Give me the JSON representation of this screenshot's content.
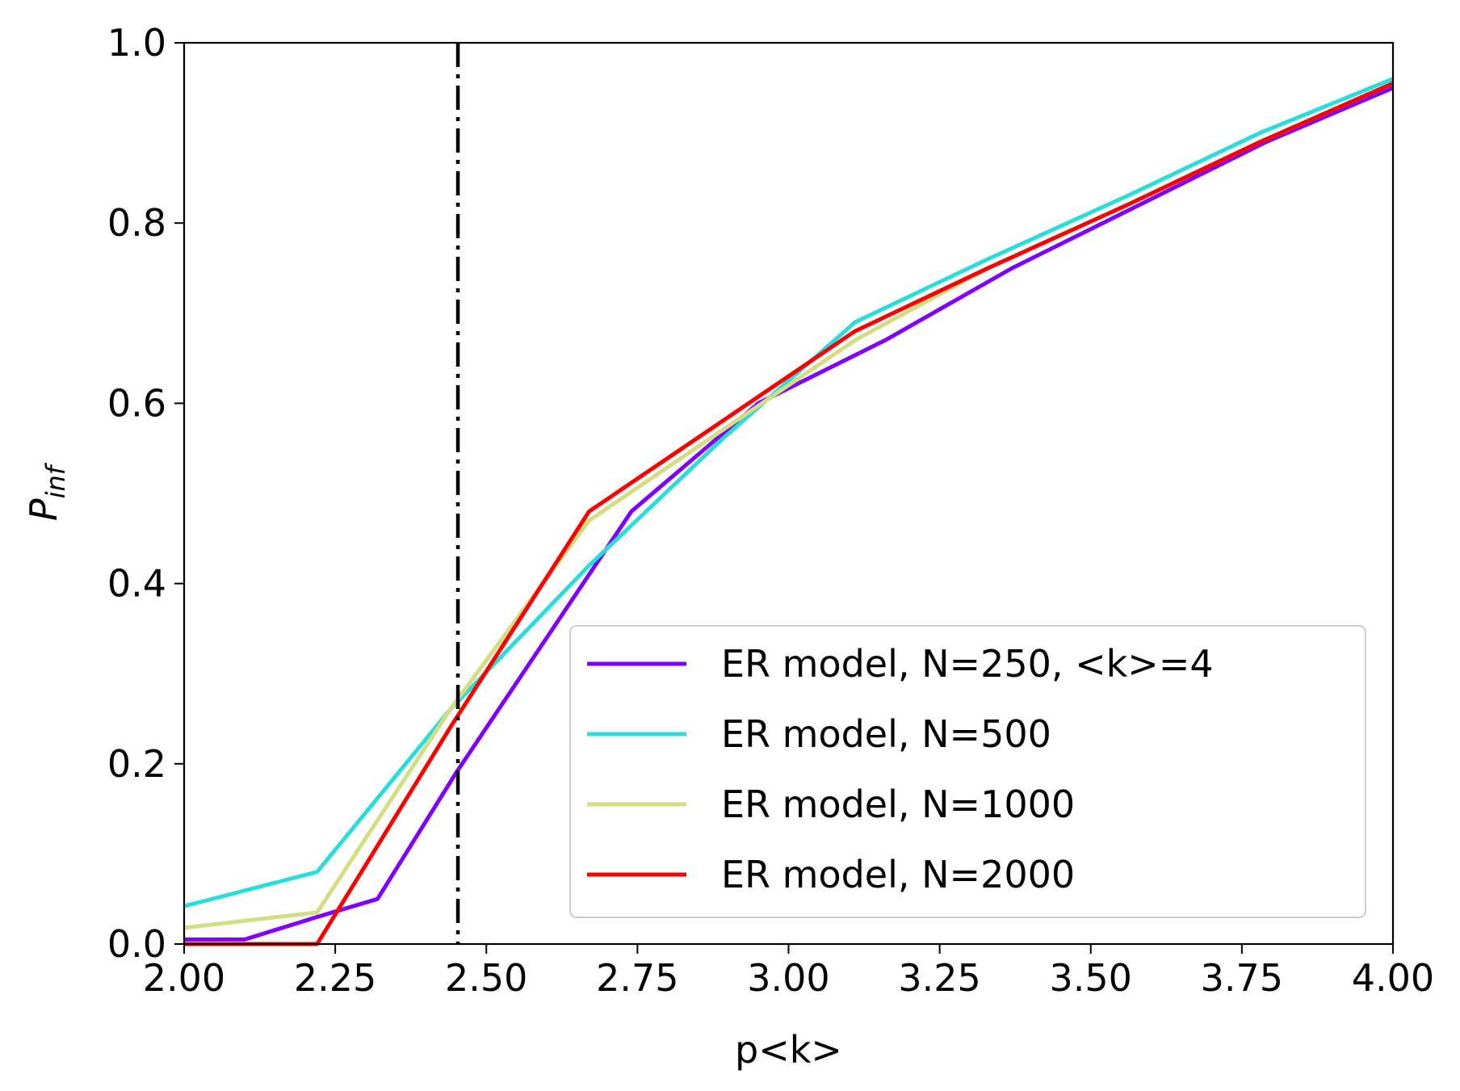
{
  "chart_data": {
    "type": "line",
    "xlabel": "p<k>",
    "ylabel_main": "P",
    "ylabel_sub": "inf",
    "xlim": [
      2.0,
      4.0
    ],
    "ylim": [
      0.0,
      1.0
    ],
    "xticks": [
      "2.00",
      "2.25",
      "2.50",
      "2.75",
      "3.00",
      "3.25",
      "3.50",
      "3.75",
      "4.00"
    ],
    "yticks": [
      "0.0",
      "0.2",
      "0.4",
      "0.6",
      "0.8",
      "1.0"
    ],
    "grid": false,
    "legend_position": "lower-right",
    "vline": {
      "x": 2.453,
      "style": "dash-dot",
      "color": "#000000"
    },
    "series": [
      {
        "name": "ER model, N=250, <k>=4",
        "color": "#7f00ff",
        "x": [
          2.0,
          2.1,
          2.22,
          2.32,
          2.45,
          2.6,
          2.74,
          2.95,
          3.16,
          3.37,
          3.58,
          3.79,
          4.0
        ],
        "y": [
          0.005,
          0.005,
          0.03,
          0.05,
          0.19,
          0.34,
          0.48,
          0.6,
          0.67,
          0.75,
          0.82,
          0.89,
          0.95
        ]
      },
      {
        "name": "ER model, N=500",
        "color": "#2adddd",
        "x": [
          2.0,
          2.22,
          2.44,
          2.67,
          2.89,
          3.11,
          3.33,
          3.56,
          3.78,
          4.0
        ],
        "y": [
          0.042,
          0.08,
          0.26,
          0.42,
          0.56,
          0.69,
          0.76,
          0.83,
          0.9,
          0.96
        ]
      },
      {
        "name": "ER model, N=1000",
        "color": "#d4dd80",
        "x": [
          2.0,
          2.22,
          2.44,
          2.67,
          2.89,
          3.11,
          3.33,
          3.56,
          3.78,
          4.0
        ],
        "y": [
          0.018,
          0.035,
          0.26,
          0.47,
          0.57,
          0.67,
          0.75,
          0.82,
          0.89,
          0.955
        ]
      },
      {
        "name": "ER model, N=2000",
        "color": "#ff0000",
        "x": [
          2.0,
          2.22,
          2.44,
          2.67,
          2.89,
          3.11,
          3.33,
          3.56,
          3.78,
          4.0
        ],
        "y": [
          0.0,
          0.0,
          0.24,
          0.48,
          0.58,
          0.68,
          0.75,
          0.82,
          0.89,
          0.955
        ]
      }
    ]
  }
}
